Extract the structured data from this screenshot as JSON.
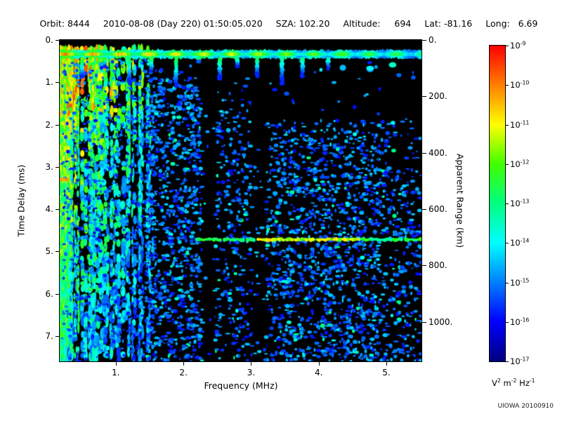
{
  "header": {
    "segments": [
      {
        "text": "Orbit: 8444"
      },
      {
        "text": "2010-08-08 (Day 220) 01:50:05.020"
      },
      {
        "text": "SZA: 102.20"
      },
      {
        "text": "Altitude:     694"
      },
      {
        "text": "Lat: -81.16"
      },
      {
        "text": "Long:   6.69"
      }
    ]
  },
  "footer": {
    "credit": "UIOWA 20100910"
  },
  "chart_data": {
    "type": "heatmap",
    "subtype": "radar-sounder-ionogram",
    "title": "",
    "xlabel": "Frequency (MHz)",
    "ylabel": "Time Delay (ms)",
    "y2label": "Apparent Range (km)",
    "xlim": [
      0.17,
      5.52
    ],
    "ylim": [
      0,
      7.6
    ],
    "y_direction": "down",
    "y2lim": [
      0,
      1140
    ],
    "grid": false,
    "background": "#000000",
    "xticks": [
      {
        "v": 1,
        "label": "1."
      },
      {
        "v": 2,
        "label": "2."
      },
      {
        "v": 3,
        "label": "3."
      },
      {
        "v": 4,
        "label": "4."
      },
      {
        "v": 5,
        "label": "5."
      }
    ],
    "yticks": [
      {
        "v": 0,
        "label": "0."
      },
      {
        "v": 1,
        "label": "1."
      },
      {
        "v": 2,
        "label": "2."
      },
      {
        "v": 3,
        "label": "3."
      },
      {
        "v": 4,
        "label": "4."
      },
      {
        "v": 5,
        "label": "5."
      },
      {
        "v": 6,
        "label": "6."
      },
      {
        "v": 7,
        "label": "7."
      }
    ],
    "y2ticks": [
      {
        "v": 0,
        "label": "0."
      },
      {
        "v": 200,
        "label": "200."
      },
      {
        "v": 400,
        "label": "400."
      },
      {
        "v": 600,
        "label": "600."
      },
      {
        "v": 800,
        "label": "800."
      },
      {
        "v": 1000,
        "label": "1000."
      }
    ],
    "colorbar": {
      "scale": "log",
      "min": 1e-17,
      "max": 1e-09,
      "tick_exponents": [
        -9,
        -10,
        -11,
        -12,
        -13,
        -14,
        -15,
        -16,
        -17
      ],
      "unit_parts": [
        {
          "base": "V",
          "exp": "2"
        },
        {
          "base": "m",
          "exp": "-2"
        },
        {
          "base": "Hz",
          "exp": "-1"
        }
      ],
      "colors": [
        "#000080",
        "#0000ff",
        "#0080ff",
        "#00ffff",
        "#00ff80",
        "#40ff00",
        "#ffff00",
        "#ff8000",
        "#ff0000"
      ]
    },
    "features": [
      {
        "name": "surface_echo_band",
        "freq_mhz": [
          0.17,
          5.52
        ],
        "delay_ms": [
          0.22,
          0.45
        ],
        "intensity_left": 0.8,
        "intensity_right": 0.5
      },
      {
        "name": "ionospheric_striations",
        "freq_mhz": [
          0.18,
          1.55
        ],
        "delay_ms": [
          0.2,
          7.6
        ],
        "max_intensity": 0.9
      },
      {
        "name": "harmonic_drips",
        "freq_mhz": [
          0.5,
          5.35
        ],
        "max_depth_ms": 1.15
      },
      {
        "name": "multiple_reflection_trace",
        "freq_mhz": [
          2.2,
          5.52
        ],
        "delay_ms": 4.72,
        "intensity": 0.62
      },
      {
        "name": "background_speckle",
        "freq_mhz": [
          1.45,
          5.52
        ],
        "delay_ms": [
          0.5,
          7.6
        ],
        "intensity": 0.25
      },
      {
        "name": "quiet_columns",
        "freq_mhz": [
          2.35,
          3.12
        ]
      },
      {
        "name": "bright_dash",
        "freq_mhz": [
          0.1,
          0.3
        ],
        "delay_ms": 3.3,
        "intensity": 0.85
      }
    ]
  }
}
